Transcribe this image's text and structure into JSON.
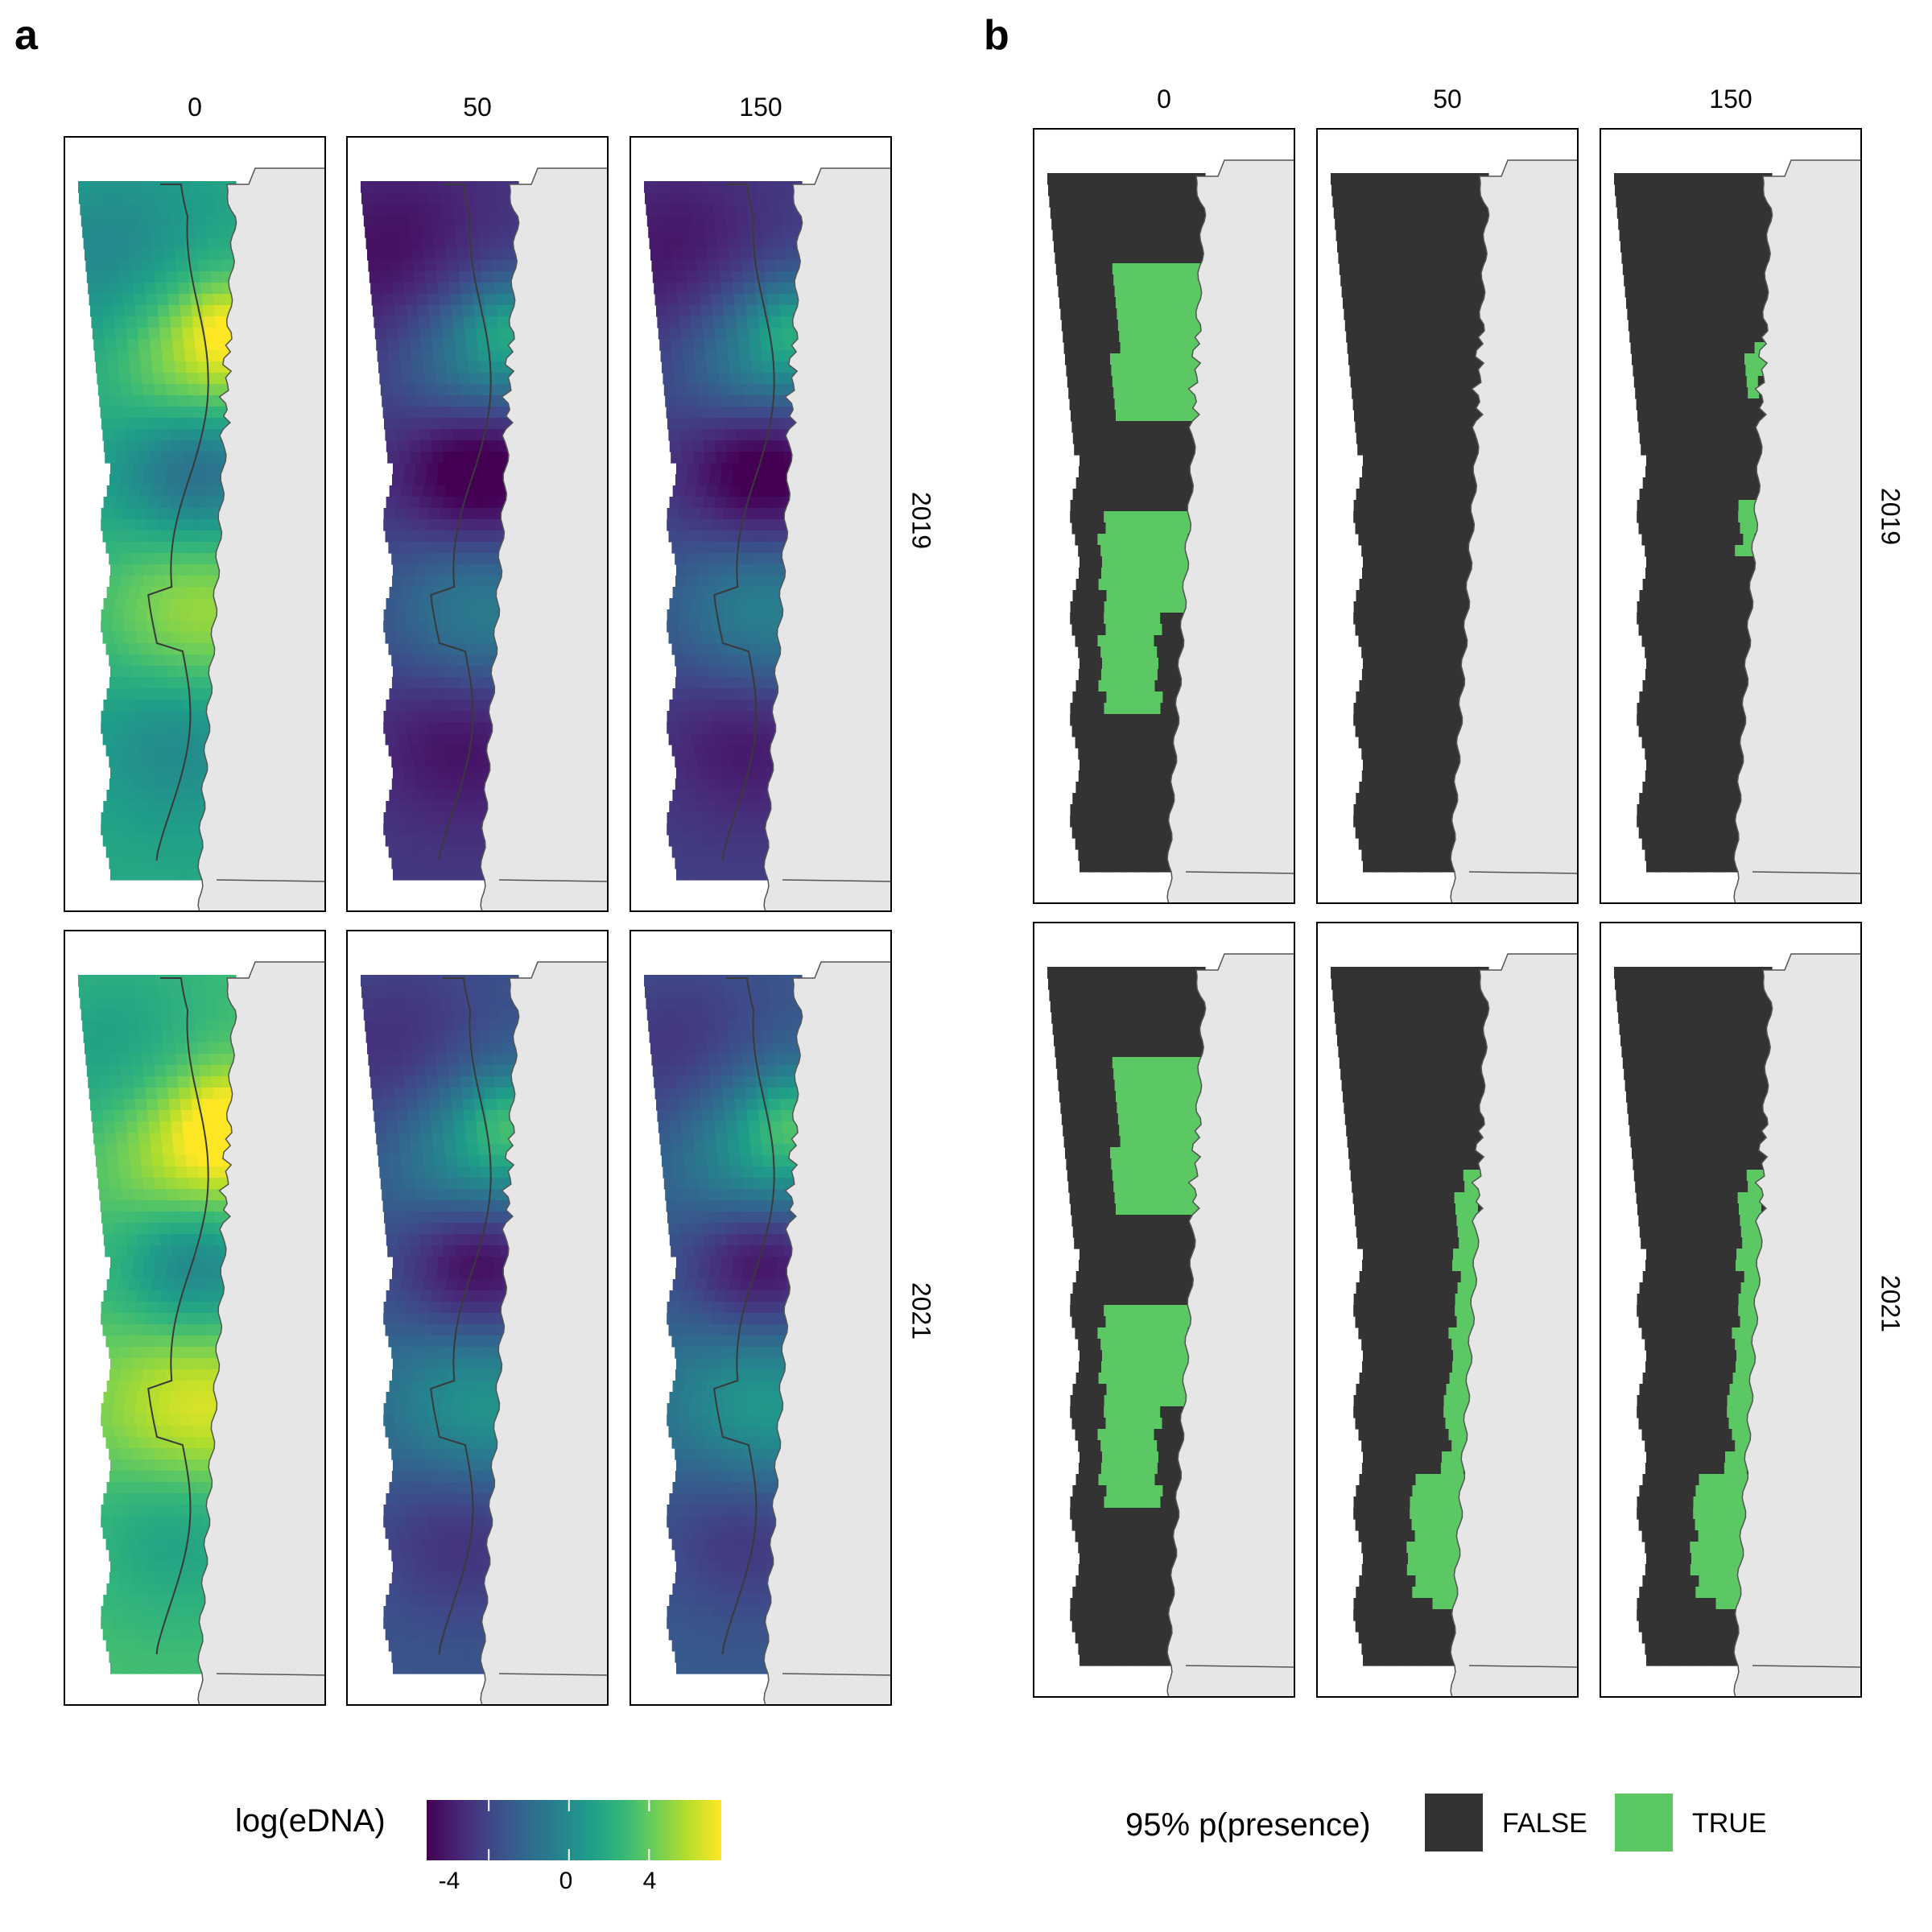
{
  "panel_a": {
    "letter": "a",
    "columns": [
      "0",
      "50",
      "150"
    ],
    "rows": [
      "2019",
      "2021"
    ],
    "legend": {
      "title": "log(eDNA)",
      "ticks": [
        "-4",
        "0",
        "4"
      ],
      "tick_values": [
        -4,
        0,
        4
      ],
      "range": [
        -7.1,
        7.6
      ],
      "colormap": "viridis"
    }
  },
  "panel_b": {
    "letter": "b",
    "columns": [
      "0",
      "50",
      "150"
    ],
    "rows": [
      "2019",
      "2021"
    ],
    "legend": {
      "title": "95% p(presence)",
      "items": [
        {
          "label": "FALSE",
          "color": "#333333"
        },
        {
          "label": "TRUE",
          "color": "#5cc863"
        }
      ]
    }
  },
  "colors": {
    "land": "#e6e6e6",
    "coast_line": "#555555",
    "isobath": "#3a3a3a",
    "frame": "#000000",
    "false_fill": "#333333",
    "true_fill": "#5cc863"
  }
}
